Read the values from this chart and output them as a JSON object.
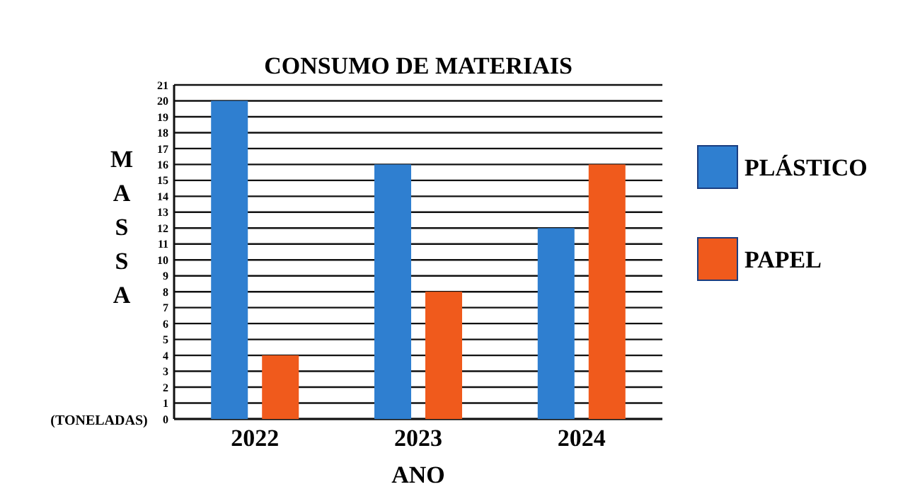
{
  "chart_data": {
    "type": "bar",
    "title": "CONSUMO DE MATERIAIS",
    "xlabel": "ANO",
    "ylabel": "MASSA",
    "annotations": [
      "(TONELADAS)"
    ],
    "categories": [
      "2022",
      "2023",
      "2024"
    ],
    "series": [
      {
        "name": "PLÁSTICO",
        "color": "#2f7fd0",
        "values": [
          20,
          16,
          12
        ]
      },
      {
        "name": "PAPEL",
        "color": "#f05a1c",
        "values": [
          4,
          8,
          16
        ]
      }
    ],
    "ylim": [
      0,
      21
    ],
    "yticks": [
      0,
      1,
      2,
      3,
      4,
      5,
      6,
      7,
      8,
      9,
      10,
      11,
      12,
      13,
      14,
      15,
      16,
      17,
      18,
      19,
      20,
      21
    ],
    "grid": "y",
    "legend": "right"
  }
}
